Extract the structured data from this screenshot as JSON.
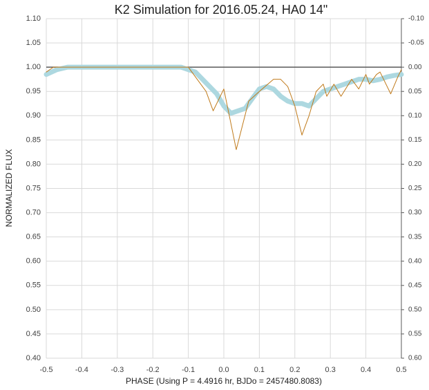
{
  "chart_data": {
    "type": "line",
    "title": "K2 Simulation for 2016.05.24, HA0 14\"",
    "xlabel": "PHASE (Using P = 4.4916 hr, BJDo = 2457480.8083)",
    "ylabel": "NORMALIZED FLUX",
    "xlim": [
      -0.5,
      0.5
    ],
    "xticks": [
      -0.5,
      -0.4,
      -0.3,
      -0.2,
      -0.1,
      {
        "value": 0,
        "label": "0.0"
      },
      0.1,
      0.2,
      0.3,
      0.4,
      0.5
    ],
    "ylim": [
      0.4,
      1.1
    ],
    "yticks": [
      {
        "value": 1.1,
        "label": "1.10"
      },
      {
        "value": 1.05,
        "label": "1.05"
      },
      {
        "value": 1.0,
        "label": "1.00"
      },
      {
        "value": 0.95,
        "label": "0.95"
      },
      {
        "value": 0.9,
        "label": "0.90"
      },
      {
        "value": 0.85,
        "label": "0.85"
      },
      {
        "value": 0.8,
        "label": "0.80"
      },
      {
        "value": 0.75,
        "label": "0.75"
      },
      {
        "value": 0.7,
        "label": "0.70"
      },
      {
        "value": 0.65,
        "label": "0.65"
      },
      {
        "value": 0.6,
        "label": "0.60"
      },
      {
        "value": 0.55,
        "label": "0.55"
      },
      {
        "value": 0.5,
        "label": "0.50"
      },
      {
        "value": 0.45,
        "label": "0.45"
      },
      {
        "value": 0.4,
        "label": "0.40"
      }
    ],
    "y2lim": [
      -0.1,
      0.6
    ],
    "y2_reversed": true,
    "y2ticks": [
      {
        "value": -0.1,
        "label": "-0.10"
      },
      {
        "value": -0.05,
        "label": "-0.05"
      },
      {
        "value": 0.0,
        "label": "0.00"
      },
      {
        "value": 0.05,
        "label": "0.05"
      },
      {
        "value": 0.1,
        "label": "0.10"
      },
      {
        "value": 0.15,
        "label": "0.15"
      },
      {
        "value": 0.2,
        "label": "0.20"
      },
      {
        "value": 0.25,
        "label": "0.25"
      },
      {
        "value": 0.3,
        "label": "0.30"
      },
      {
        "value": 0.35,
        "label": "0.35"
      },
      {
        "value": 0.4,
        "label": "0.40"
      },
      {
        "value": 0.45,
        "label": "0.45"
      },
      {
        "value": 0.5,
        "label": "0.50"
      },
      {
        "value": 0.55,
        "label": "0.55"
      },
      {
        "value": 0.6,
        "label": "0.60"
      }
    ],
    "grid": true,
    "reference_line": {
      "value": 1.0,
      "color": "#595959"
    },
    "series": [
      {
        "color": "#add8e0",
        "width": 7,
        "x": [
          -0.5,
          -0.47,
          -0.44,
          -0.3,
          -0.12,
          -0.08,
          -0.06,
          -0.04,
          -0.02,
          0.0,
          0.02,
          0.04,
          0.06,
          0.08,
          0.1,
          0.12,
          0.14,
          0.16,
          0.18,
          0.2,
          0.22,
          0.24,
          0.26,
          0.28,
          0.3,
          0.32,
          0.34,
          0.36,
          0.38,
          0.4,
          0.42,
          0.44,
          0.46,
          0.48,
          0.5
        ],
        "values": [
          0.985,
          0.995,
          1.0,
          1.0,
          1.0,
          0.99,
          0.975,
          0.96,
          0.945,
          0.92,
          0.905,
          0.91,
          0.915,
          0.935,
          0.955,
          0.96,
          0.955,
          0.94,
          0.93,
          0.925,
          0.925,
          0.92,
          0.935,
          0.95,
          0.955,
          0.96,
          0.965,
          0.97,
          0.975,
          0.975,
          0.972,
          0.975,
          0.98,
          0.983,
          0.985
        ]
      },
      {
        "color": "#c07a1a",
        "width": 1,
        "x": [
          -0.5,
          -0.48,
          -0.3,
          -0.12,
          -0.1,
          -0.08,
          -0.05,
          -0.03,
          0.0,
          0.035,
          0.07,
          0.1,
          0.14,
          0.16,
          0.18,
          0.2,
          0.22,
          0.24,
          0.26,
          0.28,
          0.29,
          0.31,
          0.33,
          0.36,
          0.38,
          0.4,
          0.41,
          0.43,
          0.44,
          0.47,
          0.49,
          0.5
        ],
        "values": [
          0.99,
          1.0,
          1.0,
          1.0,
          1.0,
          0.98,
          0.95,
          0.91,
          0.955,
          0.83,
          0.93,
          0.95,
          0.975,
          0.975,
          0.96,
          0.92,
          0.86,
          0.9,
          0.95,
          0.965,
          0.94,
          0.965,
          0.94,
          0.975,
          0.955,
          0.985,
          0.965,
          0.985,
          0.99,
          0.945,
          0.98,
          0.995
        ]
      }
    ]
  }
}
